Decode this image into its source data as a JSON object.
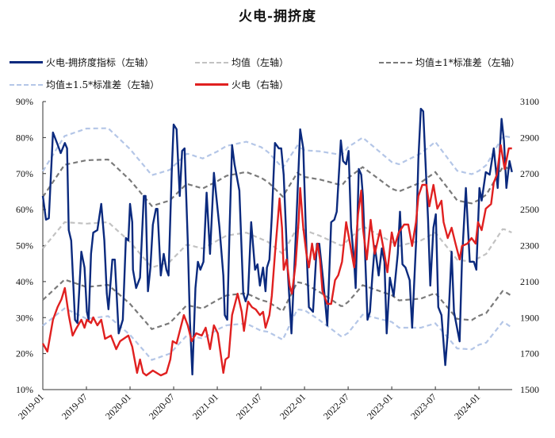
{
  "chart_data": {
    "type": "line",
    "title": "火电-拥挤度",
    "x_tick_labels": [
      "2019-01",
      "2019-07",
      "2020-01",
      "2020-07",
      "2021-01",
      "2021-07",
      "2022-01",
      "2022-07",
      "2023-01",
      "2023-07",
      "2024-01"
    ],
    "xlim": [
      "2019-01-01",
      "2024-05-18"
    ],
    "y_left": {
      "ticks": [
        "10%",
        "20%",
        "30%",
        "40%",
        "50%",
        "60%",
        "70%",
        "80%",
        "90%"
      ],
      "ylim": [
        10,
        90
      ]
    },
    "y_right": {
      "ticks": [
        "1500",
        "1700",
        "1900",
        "2100",
        "2300",
        "2500",
        "2700",
        "2900",
        "3100"
      ],
      "ylim": [
        1500,
        3100
      ]
    },
    "grid": false,
    "legend_position": "top",
    "colors": {
      "index": "#0b2a7e",
      "mean": "#c2c2c2",
      "sd1": "#7a7a7a",
      "sd15": "#b4c6e7",
      "price": "#e02020"
    },
    "legend": {
      "index": "火电-拥挤度指标（左轴）",
      "mean": "均值（左轴）",
      "sd1": "均值±1*标准差（左轴）",
      "sd15": "均值±1.5*标准差（左轴）",
      "price": "火电（右轴）"
    },
    "series_index": [
      [
        "2019-01-01",
        63.8
      ],
      [
        "2019-01-14",
        57.2
      ],
      [
        "2019-01-26",
        57.6
      ],
      [
        "2019-02-13",
        81.4
      ],
      [
        "2019-03-02",
        78.1
      ],
      [
        "2019-03-15",
        75.7
      ],
      [
        "2019-04-02",
        78.5
      ],
      [
        "2019-04-11",
        77.0
      ],
      [
        "2019-04-18",
        54.3
      ],
      [
        "2019-04-28",
        51.4
      ],
      [
        "2019-05-14",
        29.4
      ],
      [
        "2019-05-24",
        28.5
      ],
      [
        "2019-06-10",
        48.3
      ],
      [
        "2019-06-23",
        43.9
      ],
      [
        "2019-07-03",
        31.6
      ],
      [
        "2019-07-10",
        29.4
      ],
      [
        "2019-07-20",
        47.7
      ],
      [
        "2019-07-29",
        53.6
      ],
      [
        "2019-08-16",
        54.3
      ],
      [
        "2019-09-02",
        61.6
      ],
      [
        "2019-09-15",
        51.4
      ],
      [
        "2019-09-25",
        36.7
      ],
      [
        "2019-10-02",
        32.3
      ],
      [
        "2019-10-18",
        46.1
      ],
      [
        "2019-10-28",
        46.1
      ],
      [
        "2019-11-14",
        25.6
      ],
      [
        "2019-12-01",
        29.4
      ],
      [
        "2019-12-14",
        52.1
      ],
      [
        "2019-12-24",
        51.4
      ],
      [
        "2020-01-01",
        61.6
      ],
      [
        "2020-01-10",
        56.5
      ],
      [
        "2020-01-13",
        43.3
      ],
      [
        "2020-01-26",
        38.2
      ],
      [
        "2020-02-12",
        41.1
      ],
      [
        "2020-02-28",
        63.8
      ],
      [
        "2020-03-05",
        63.8
      ],
      [
        "2020-03-15",
        37.3
      ],
      [
        "2020-03-25",
        43.9
      ],
      [
        "2020-04-05",
        55.8
      ],
      [
        "2020-04-18",
        60.2
      ],
      [
        "2020-04-24",
        60.2
      ],
      [
        "2020-05-08",
        41.7
      ],
      [
        "2020-05-20",
        47.7
      ],
      [
        "2020-06-01",
        43.3
      ],
      [
        "2020-06-10",
        41.7
      ],
      [
        "2020-06-23",
        70.4
      ],
      [
        "2020-07-01",
        83.6
      ],
      [
        "2020-07-13",
        82.3
      ],
      [
        "2020-07-26",
        63.8
      ],
      [
        "2020-08-06",
        76.3
      ],
      [
        "2020-08-16",
        77.0
      ],
      [
        "2020-08-29",
        51.4
      ],
      [
        "2020-09-08",
        29.4
      ],
      [
        "2020-09-18",
        14.2
      ],
      [
        "2020-10-01",
        38.2
      ],
      [
        "2020-10-11",
        45.5
      ],
      [
        "2020-10-21",
        43.3
      ],
      [
        "2020-11-04",
        45.5
      ],
      [
        "2020-11-17",
        64.7
      ],
      [
        "2020-12-01",
        47.7
      ],
      [
        "2020-12-17",
        70.2
      ],
      [
        "2021-01-10",
        55.0
      ],
      [
        "2021-01-26",
        41.7
      ],
      [
        "2021-02-02",
        30.7
      ],
      [
        "2021-02-12",
        29.4
      ],
      [
        "2021-02-22",
        55.0
      ],
      [
        "2021-03-02",
        77.9
      ],
      [
        "2021-03-12",
        72.6
      ],
      [
        "2021-04-02",
        65.3
      ],
      [
        "2021-04-18",
        36.7
      ],
      [
        "2021-04-28",
        34.5
      ],
      [
        "2021-05-08",
        36.7
      ],
      [
        "2021-05-21",
        56.5
      ],
      [
        "2021-06-07",
        43.3
      ],
      [
        "2021-06-17",
        44.8
      ],
      [
        "2021-06-27",
        38.9
      ],
      [
        "2021-07-10",
        43.9
      ],
      [
        "2021-07-20",
        37.3
      ],
      [
        "2021-07-26",
        43.9
      ],
      [
        "2021-08-06",
        46.1
      ],
      [
        "2021-08-16",
        58.0
      ],
      [
        "2021-08-29",
        78.5
      ],
      [
        "2021-09-15",
        77.0
      ],
      [
        "2021-09-25",
        77.0
      ],
      [
        "2021-10-05",
        69.7
      ],
      [
        "2021-10-21",
        43.9
      ],
      [
        "2021-11-07",
        25.6
      ],
      [
        "2021-11-24",
        51.4
      ],
      [
        "2021-12-13",
        82.3
      ],
      [
        "2021-12-26",
        77.0
      ],
      [
        "2022-01-09",
        49.2
      ],
      [
        "2022-01-19",
        32.9
      ],
      [
        "2022-02-06",
        31.6
      ],
      [
        "2022-02-22",
        50.5
      ],
      [
        "2022-03-02",
        50.5
      ],
      [
        "2022-03-18",
        40.4
      ],
      [
        "2022-04-05",
        27.8
      ],
      [
        "2022-04-21",
        56.5
      ],
      [
        "2022-05-04",
        57.2
      ],
      [
        "2022-05-14",
        59.4
      ],
      [
        "2022-06-01",
        79.2
      ],
      [
        "2022-06-10",
        73.5
      ],
      [
        "2022-06-23",
        72.6
      ],
      [
        "2022-07-03",
        76.3
      ],
      [
        "2022-07-13",
        55.0
      ],
      [
        "2022-07-26",
        45.5
      ],
      [
        "2022-08-02",
        38.2
      ],
      [
        "2022-08-15",
        71.3
      ],
      [
        "2022-08-25",
        69.7
      ],
      [
        "2022-09-02",
        63.8
      ],
      [
        "2022-09-15",
        40.4
      ],
      [
        "2022-09-21",
        29.4
      ],
      [
        "2022-10-01",
        31.6
      ],
      [
        "2022-10-11",
        41.7
      ],
      [
        "2022-10-21",
        49.9
      ],
      [
        "2022-11-07",
        41.7
      ],
      [
        "2022-11-20",
        49.2
      ],
      [
        "2022-12-01",
        45.5
      ],
      [
        "2022-12-10",
        25.6
      ],
      [
        "2022-12-23",
        41.1
      ],
      [
        "2023-01-09",
        36.0
      ],
      [
        "2023-01-26",
        47.7
      ],
      [
        "2023-02-05",
        59.4
      ],
      [
        "2023-02-15",
        44.8
      ],
      [
        "2023-02-28",
        43.9
      ],
      [
        "2023-03-15",
        40.4
      ],
      [
        "2023-03-25",
        27.2
      ],
      [
        "2023-04-11",
        50.5
      ],
      [
        "2023-04-21",
        74.1
      ],
      [
        "2023-05-01",
        88.0
      ],
      [
        "2023-05-11",
        87.3
      ],
      [
        "2023-05-20",
        73.5
      ],
      [
        "2023-06-01",
        57.2
      ],
      [
        "2023-06-10",
        38.9
      ],
      [
        "2023-06-23",
        55.0
      ],
      [
        "2023-07-03",
        58.7
      ],
      [
        "2023-07-13",
        32.9
      ],
      [
        "2023-07-26",
        30.7
      ],
      [
        "2023-08-12",
        16.8
      ],
      [
        "2023-08-22",
        25.6
      ],
      [
        "2023-09-08",
        48.3
      ],
      [
        "2023-09-18",
        31.6
      ],
      [
        "2023-10-11",
        23.4
      ],
      [
        "2023-10-21",
        46.1
      ],
      [
        "2023-11-07",
        66.0
      ],
      [
        "2023-11-23",
        45.5
      ],
      [
        "2023-12-10",
        45.5
      ],
      [
        "2023-12-20",
        43.3
      ],
      [
        "2024-01-03",
        66.0
      ],
      [
        "2024-01-12",
        62.5
      ],
      [
        "2024-01-29",
        70.4
      ],
      [
        "2024-02-15",
        69.7
      ],
      [
        "2024-03-02",
        77.0
      ],
      [
        "2024-03-18",
        66.0
      ],
      [
        "2024-04-04",
        85.2
      ],
      [
        "2024-04-14",
        79.2
      ],
      [
        "2024-04-24",
        66.0
      ],
      [
        "2024-05-07",
        73.5
      ],
      [
        "2024-05-17",
        70.4
      ]
    ],
    "series_mean": [
      [
        "2019-01-01",
        49.2
      ],
      [
        "2019-04-01",
        56.5
      ],
      [
        "2019-07-01",
        56.1
      ],
      [
        "2019-10-01",
        56.5
      ],
      [
        "2020-01-01",
        51.0
      ],
      [
        "2020-04-01",
        43.9
      ],
      [
        "2020-06-15",
        45.5
      ],
      [
        "2020-08-25",
        50.3
      ],
      [
        "2020-11-01",
        49.2
      ],
      [
        "2021-02-10",
        52.8
      ],
      [
        "2021-05-01",
        53.6
      ],
      [
        "2021-08-01",
        51.0
      ],
      [
        "2021-10-01",
        47.7
      ],
      [
        "2021-12-01",
        55.0
      ],
      [
        "2022-03-01",
        52.8
      ],
      [
        "2022-06-05",
        49.9
      ],
      [
        "2022-09-01",
        55.4
      ],
      [
        "2022-12-01",
        52.1
      ],
      [
        "2023-02-01",
        49.9
      ],
      [
        "2023-05-01",
        51.4
      ],
      [
        "2023-07-01",
        53.6
      ],
      [
        "2023-10-01",
        46.1
      ],
      [
        "2023-12-01",
        45.5
      ],
      [
        "2024-02-01",
        47.7
      ],
      [
        "2024-04-10",
        54.7
      ],
      [
        "2024-05-17",
        53.6
      ]
    ],
    "series_std": [
      [
        "2019-01-01",
        14.3
      ],
      [
        "2019-07-01",
        17.6
      ],
      [
        "2020-01-01",
        17.2
      ],
      [
        "2020-07-01",
        17.0
      ],
      [
        "2021-01-01",
        16.5
      ],
      [
        "2021-07-01",
        17.0
      ],
      [
        "2022-01-01",
        14.8
      ],
      [
        "2022-07-01",
        17.2
      ],
      [
        "2023-01-01",
        14.8
      ],
      [
        "2023-07-01",
        16.8
      ],
      [
        "2024-01-01",
        16.1
      ],
      [
        "2024-05-17",
        17.6
      ]
    ],
    "series_price": [
      [
        "2019-01-01",
        1756
      ],
      [
        "2019-01-20",
        1711
      ],
      [
        "2019-02-13",
        1888
      ],
      [
        "2019-03-02",
        1958
      ],
      [
        "2019-03-18",
        2002
      ],
      [
        "2019-04-02",
        2064
      ],
      [
        "2019-04-18",
        1914
      ],
      [
        "2019-05-04",
        1800
      ],
      [
        "2019-05-17",
        1835
      ],
      [
        "2019-06-10",
        1888
      ],
      [
        "2019-06-23",
        1844
      ],
      [
        "2019-07-03",
        1888
      ],
      [
        "2019-07-20",
        1870
      ],
      [
        "2019-07-29",
        1901
      ],
      [
        "2019-08-16",
        1857
      ],
      [
        "2019-09-02",
        1888
      ],
      [
        "2019-09-18",
        1782
      ],
      [
        "2019-10-12",
        1800
      ],
      [
        "2019-11-04",
        1725
      ],
      [
        "2019-11-20",
        1769
      ],
      [
        "2019-12-24",
        1800
      ],
      [
        "2020-01-10",
        1738
      ],
      [
        "2020-01-30",
        1593
      ],
      [
        "2020-02-12",
        1667
      ],
      [
        "2020-02-25",
        1593
      ],
      [
        "2020-03-08",
        1579
      ],
      [
        "2020-04-05",
        1606
      ],
      [
        "2020-05-08",
        1579
      ],
      [
        "2020-06-01",
        1593
      ],
      [
        "2020-06-17",
        1667
      ],
      [
        "2020-06-27",
        1769
      ],
      [
        "2020-07-13",
        1756
      ],
      [
        "2020-08-13",
        1914
      ],
      [
        "2020-08-29",
        1857
      ],
      [
        "2020-09-15",
        1769
      ],
      [
        "2020-10-04",
        1813
      ],
      [
        "2020-10-27",
        1800
      ],
      [
        "2020-11-13",
        1844
      ],
      [
        "2020-12-01",
        1725
      ],
      [
        "2020-12-17",
        1857
      ],
      [
        "2021-01-03",
        1813
      ],
      [
        "2021-01-26",
        1593
      ],
      [
        "2021-02-05",
        1667
      ],
      [
        "2021-02-18",
        1681
      ],
      [
        "2021-03-02",
        1914
      ],
      [
        "2021-03-25",
        2033
      ],
      [
        "2021-04-12",
        1932
      ],
      [
        "2021-04-21",
        1826
      ],
      [
        "2021-05-08",
        1989
      ],
      [
        "2021-05-24",
        1958
      ],
      [
        "2021-06-10",
        1945
      ],
      [
        "2021-06-27",
        1914
      ],
      [
        "2021-07-10",
        1932
      ],
      [
        "2021-07-20",
        1844
      ],
      [
        "2021-08-06",
        1914
      ],
      [
        "2021-08-16",
        2020
      ],
      [
        "2021-08-29",
        2254
      ],
      [
        "2021-09-08",
        2395
      ],
      [
        "2021-09-18",
        2562
      ],
      [
        "2021-09-28",
        2399
      ],
      [
        "2021-10-05",
        2165
      ],
      [
        "2021-10-17",
        2223
      ],
      [
        "2021-10-30",
        2077
      ],
      [
        "2021-11-09",
        2033
      ],
      [
        "2021-11-24",
        2196
      ],
      [
        "2021-12-07",
        2439
      ],
      [
        "2021-12-13",
        2620
      ],
      [
        "2021-12-26",
        2399
      ],
      [
        "2022-01-09",
        2254
      ],
      [
        "2022-01-19",
        2179
      ],
      [
        "2022-02-02",
        2311
      ],
      [
        "2022-02-12",
        2223
      ],
      [
        "2022-02-25",
        2311
      ],
      [
        "2022-03-05",
        2223
      ],
      [
        "2022-03-15",
        2047
      ],
      [
        "2022-04-05",
        1976
      ],
      [
        "2022-04-21",
        1976
      ],
      [
        "2022-05-07",
        2108
      ],
      [
        "2022-05-20",
        2135
      ],
      [
        "2022-06-06",
        2210
      ],
      [
        "2022-06-23",
        2430
      ],
      [
        "2022-07-09",
        2311
      ],
      [
        "2022-07-26",
        2179
      ],
      [
        "2022-08-12",
        2474
      ],
      [
        "2022-08-25",
        2606
      ],
      [
        "2022-09-02",
        2399
      ],
      [
        "2022-09-18",
        2223
      ],
      [
        "2022-10-04",
        2443
      ],
      [
        "2022-10-21",
        2254
      ],
      [
        "2022-11-13",
        2386
      ],
      [
        "2022-12-01",
        2254
      ],
      [
        "2022-12-13",
        2152
      ],
      [
        "2023-01-01",
        2373
      ],
      [
        "2023-01-13",
        2298
      ],
      [
        "2023-01-30",
        2373
      ],
      [
        "2023-02-22",
        2417
      ],
      [
        "2023-03-09",
        2417
      ],
      [
        "2023-03-25",
        2298
      ],
      [
        "2023-04-11",
        2430
      ],
      [
        "2023-04-21",
        2575
      ],
      [
        "2023-05-07",
        2637
      ],
      [
        "2023-05-24",
        2637
      ],
      [
        "2023-06-06",
        2518
      ],
      [
        "2023-06-23",
        2637
      ],
      [
        "2023-07-09",
        2505
      ],
      [
        "2023-07-26",
        2549
      ],
      [
        "2023-08-05",
        2430
      ],
      [
        "2023-08-22",
        2342
      ],
      [
        "2023-09-08",
        2399
      ],
      [
        "2023-09-24",
        2311
      ],
      [
        "2023-10-11",
        2223
      ],
      [
        "2023-10-21",
        2298
      ],
      [
        "2023-11-13",
        2311
      ],
      [
        "2023-11-30",
        2342
      ],
      [
        "2023-12-17",
        2311
      ],
      [
        "2023-12-27",
        2430
      ],
      [
        "2024-01-12",
        2386
      ],
      [
        "2024-01-29",
        2505
      ],
      [
        "2024-02-21",
        2531
      ],
      [
        "2024-03-02",
        2650
      ],
      [
        "2024-03-15",
        2694
      ],
      [
        "2024-03-31",
        2858
      ],
      [
        "2024-04-17",
        2725
      ],
      [
        "2024-05-04",
        2840
      ],
      [
        "2024-05-17",
        2840
      ]
    ]
  }
}
